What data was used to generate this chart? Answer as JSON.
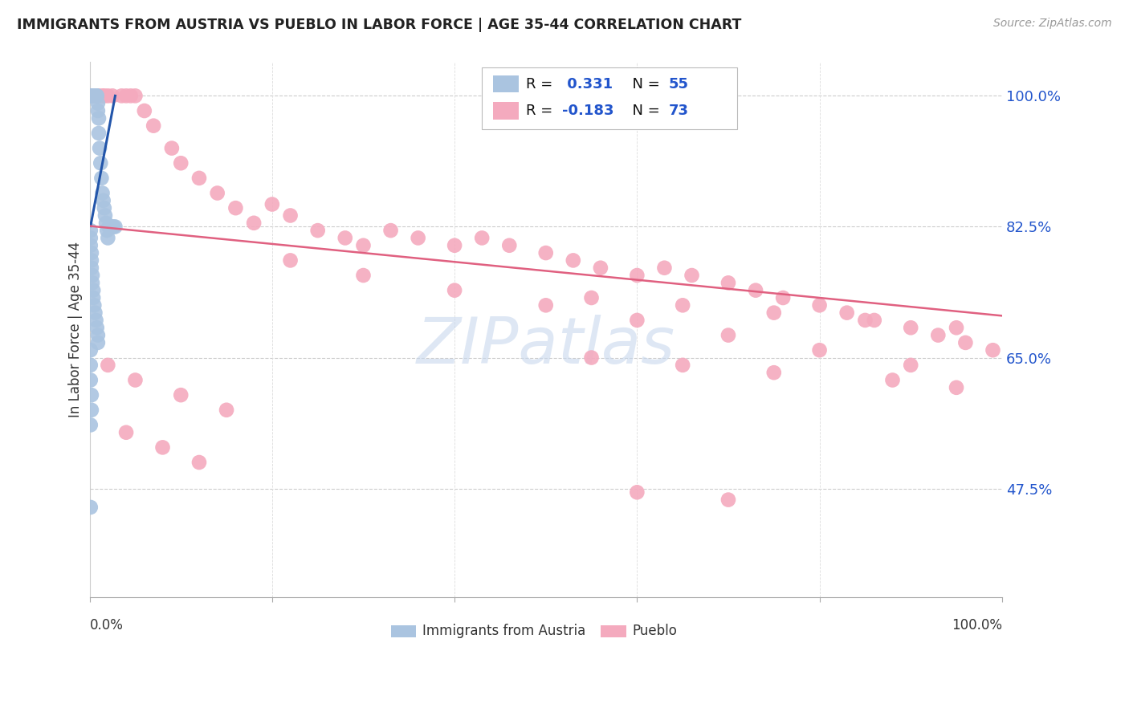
{
  "title": "IMMIGRANTS FROM AUSTRIA VS PUEBLO IN LABOR FORCE | AGE 35-44 CORRELATION CHART",
  "source": "Source: ZipAtlas.com",
  "ylabel": "In Labor Force | Age 35-44",
  "blue_label": "Immigrants from Austria",
  "pink_label": "Pueblo",
  "blue_R": 0.331,
  "blue_N": 55,
  "pink_R": -0.183,
  "pink_N": 73,
  "blue_color": "#aac4e0",
  "pink_color": "#f4aabe",
  "blue_line_color": "#2255aa",
  "pink_line_color": "#e06080",
  "watermark": "ZIPatlas",
  "xlim": [
    0.0,
    1.0
  ],
  "ylim": [
    0.33,
    1.045
  ],
  "yticks": [
    0.475,
    0.65,
    0.825,
    1.0
  ],
  "ytick_labels": [
    "47.5%",
    "65.0%",
    "82.5%",
    "100.0%"
  ],
  "blue_x": [
    0.001,
    0.002,
    0.003,
    0.003,
    0.004,
    0.004,
    0.005,
    0.005,
    0.006,
    0.007,
    0.007,
    0.008,
    0.008,
    0.009,
    0.009,
    0.01,
    0.01,
    0.011,
    0.012,
    0.013,
    0.014,
    0.015,
    0.016,
    0.017,
    0.018,
    0.019,
    0.02,
    0.021,
    0.022,
    0.024,
    0.026,
    0.028,
    0.001,
    0.001,
    0.001,
    0.002,
    0.002,
    0.002,
    0.003,
    0.003,
    0.004,
    0.004,
    0.005,
    0.006,
    0.007,
    0.008,
    0.009,
    0.009,
    0.001,
    0.001,
    0.001,
    0.002,
    0.002,
    0.001,
    0.001
  ],
  "blue_y": [
    1.0,
    1.0,
    1.0,
    1.0,
    1.0,
    1.0,
    1.0,
    1.0,
    1.0,
    1.0,
    1.0,
    1.0,
    1.0,
    0.99,
    0.98,
    0.97,
    0.95,
    0.93,
    0.91,
    0.89,
    0.87,
    0.86,
    0.85,
    0.84,
    0.83,
    0.82,
    0.81,
    0.825,
    0.825,
    0.825,
    0.825,
    0.825,
    0.82,
    0.81,
    0.8,
    0.79,
    0.78,
    0.77,
    0.76,
    0.75,
    0.74,
    0.73,
    0.72,
    0.71,
    0.7,
    0.69,
    0.68,
    0.67,
    0.66,
    0.64,
    0.62,
    0.6,
    0.58,
    0.56,
    0.45
  ],
  "pink_x": [
    0.003,
    0.005,
    0.008,
    0.01,
    0.014,
    0.016,
    0.02,
    0.025,
    0.035,
    0.04,
    0.045,
    0.05,
    0.06,
    0.07,
    0.09,
    0.1,
    0.12,
    0.14,
    0.16,
    0.18,
    0.2,
    0.22,
    0.25,
    0.28,
    0.3,
    0.33,
    0.36,
    0.4,
    0.43,
    0.46,
    0.5,
    0.53,
    0.56,
    0.6,
    0.63,
    0.66,
    0.7,
    0.73,
    0.76,
    0.8,
    0.83,
    0.86,
    0.9,
    0.93,
    0.96,
    0.99,
    0.22,
    0.3,
    0.4,
    0.5,
    0.6,
    0.7,
    0.8,
    0.9,
    0.02,
    0.05,
    0.1,
    0.15,
    0.55,
    0.65,
    0.75,
    0.85,
    0.95,
    0.04,
    0.08,
    0.12,
    0.55,
    0.65,
    0.75,
    0.88,
    0.95,
    0.6,
    0.7
  ],
  "pink_y": [
    1.0,
    1.0,
    1.0,
    1.0,
    1.0,
    1.0,
    1.0,
    1.0,
    1.0,
    1.0,
    1.0,
    1.0,
    0.98,
    0.96,
    0.93,
    0.91,
    0.89,
    0.87,
    0.85,
    0.83,
    0.855,
    0.84,
    0.82,
    0.81,
    0.8,
    0.82,
    0.81,
    0.8,
    0.81,
    0.8,
    0.79,
    0.78,
    0.77,
    0.76,
    0.77,
    0.76,
    0.75,
    0.74,
    0.73,
    0.72,
    0.71,
    0.7,
    0.69,
    0.68,
    0.67,
    0.66,
    0.78,
    0.76,
    0.74,
    0.72,
    0.7,
    0.68,
    0.66,
    0.64,
    0.64,
    0.62,
    0.6,
    0.58,
    0.73,
    0.72,
    0.71,
    0.7,
    0.69,
    0.55,
    0.53,
    0.51,
    0.65,
    0.64,
    0.63,
    0.62,
    0.61,
    0.47,
    0.46
  ],
  "pink_line_x0": 0.0,
  "pink_line_y0": 0.826,
  "pink_line_x1": 1.0,
  "pink_line_y1": 0.706,
  "blue_line_x0": 0.001,
  "blue_line_y0": 0.826,
  "blue_line_x1": 0.028,
  "blue_line_y1": 1.0
}
